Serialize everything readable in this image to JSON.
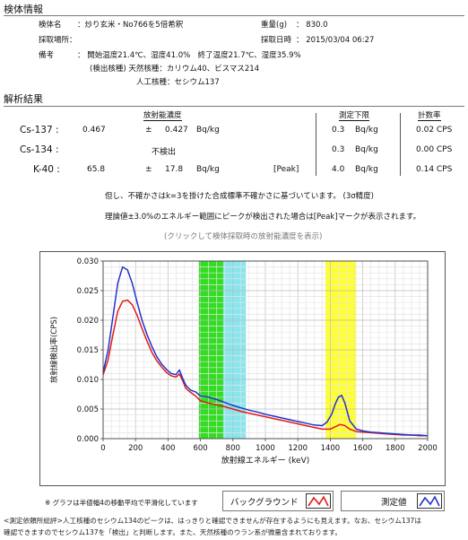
{
  "sample_info": {
    "heading": "検体情報",
    "name_label": "検体名",
    "name_value": "：炒り玄米・No766を5倍希釈",
    "weight_label": "重量(g)",
    "weight_value": "： 830.0",
    "place_label": "採取場所：",
    "datetime_label": "採取日時",
    "datetime_value": "： 2015/03/04 06:27",
    "remarks_label": "備考",
    "remarks_line1": "： 開始温度21.4℃、湿度41.0%　終了温度21.7℃、湿度35.9%",
    "remarks_line2": "(検出核種) 天然核種：カリウム40、ビスマス214",
    "remarks_line3": "人工核種：セシウム137"
  },
  "analysis": {
    "heading": "解析結果",
    "col_concentration": "放射能濃度",
    "col_lower_limit": "測定下限",
    "col_count_rate": "計数率",
    "rows": [
      {
        "nuclide": "Cs-137 :",
        "value": "0.467",
        "pm": "±",
        "error": "0.427",
        "unit": "Bq/kg",
        "flag": "",
        "lower_limit": "0.3",
        "lower_unit": "Bq/kg",
        "count_rate": "0.02 CPS"
      },
      {
        "nuclide": "Cs-134 :",
        "value": "不検出",
        "pm": "",
        "error": "",
        "unit": "",
        "flag": "",
        "lower_limit": "0.3",
        "lower_unit": "Bq/kg",
        "count_rate": "0.00 CPS"
      },
      {
        "nuclide": "K-40 :",
        "value": "65.8",
        "pm": "±",
        "error": "17.8",
        "unit": "Bq/kg",
        "flag": "[Peak]",
        "lower_limit": "4.0",
        "lower_unit": "Bq/kg",
        "count_rate": "0.14 CPS"
      }
    ],
    "note1": "但し、不確かさはk=3を掛けた合成標準不確かさに基づいています。 (3σ精度)",
    "note2": "理論値±3.0%のエネルギー範囲にピークが検出された場合は[Peak]マークが表示されます。",
    "link_text": "(クリックして検体採取時の放射能濃度を表示)"
  },
  "chart_data": {
    "type": "line",
    "xlabel": "放射線エネルギー (keV)",
    "ylabel": "放射線検出率(CPS)",
    "xlim": [
      0,
      2000
    ],
    "ylim": [
      0,
      0.03
    ],
    "x_ticks": [
      "0",
      "200",
      "400",
      "600",
      "800",
      "1000",
      "1200",
      "1400",
      "1600",
      "1800",
      "2000"
    ],
    "y_ticks": [
      "0.000",
      "0.005",
      "0.010",
      "0.015",
      "0.020",
      "0.025",
      "0.030"
    ],
    "grid": true,
    "bands": [
      {
        "from": 590,
        "to": 740,
        "color": "#33dd22"
      },
      {
        "from": 740,
        "to": 880,
        "color": "#88e6ec"
      },
      {
        "from": 1370,
        "to": 1560,
        "color": "#ffff33"
      }
    ],
    "series": [
      {
        "name": "バックグラウンド",
        "color": "#e21b1b",
        "x": [
          0,
          30,
          60,
          90,
          120,
          150,
          180,
          210,
          240,
          270,
          300,
          330,
          360,
          390,
          420,
          450,
          470,
          490,
          510,
          540,
          570,
          600,
          650,
          700,
          750,
          800,
          850,
          900,
          950,
          1000,
          1050,
          1100,
          1150,
          1200,
          1250,
          1300,
          1350,
          1400,
          1430,
          1460,
          1490,
          1520,
          1560,
          1600,
          1650,
          1700,
          1750,
          1800,
          1850,
          1900,
          1950,
          2000
        ],
        "values": [
          0.0108,
          0.0132,
          0.0175,
          0.0215,
          0.0232,
          0.0234,
          0.0226,
          0.0208,
          0.0186,
          0.0165,
          0.0146,
          0.0132,
          0.0121,
          0.0112,
          0.0106,
          0.0104,
          0.0109,
          0.0098,
          0.0085,
          0.0078,
          0.0072,
          0.0064,
          0.006,
          0.0057,
          0.0054,
          0.005,
          0.0046,
          0.0043,
          0.004,
          0.0037,
          0.0034,
          0.0031,
          0.0028,
          0.0025,
          0.0022,
          0.0019,
          0.0016,
          0.0016,
          0.002,
          0.0024,
          0.0022,
          0.0016,
          0.0012,
          0.0011,
          0.001,
          0.0009,
          0.0008,
          0.0007,
          0.0006,
          0.0006,
          0.0005,
          0.0005
        ]
      },
      {
        "name": "測定値",
        "color": "#2233cc",
        "x": [
          0,
          30,
          60,
          90,
          120,
          150,
          180,
          210,
          240,
          270,
          300,
          330,
          360,
          390,
          420,
          450,
          470,
          490,
          510,
          540,
          570,
          600,
          650,
          700,
          750,
          800,
          850,
          900,
          950,
          1000,
          1050,
          1100,
          1150,
          1200,
          1250,
          1300,
          1350,
          1380,
          1410,
          1430,
          1450,
          1470,
          1490,
          1520,
          1560,
          1600,
          1650,
          1700,
          1750,
          1800,
          1850,
          1900,
          1950,
          2000
        ],
        "values": [
          0.0112,
          0.0148,
          0.0205,
          0.0262,
          0.029,
          0.0285,
          0.0262,
          0.023,
          0.02,
          0.0176,
          0.0156,
          0.0139,
          0.0126,
          0.0117,
          0.011,
          0.0108,
          0.0116,
          0.0102,
          0.009,
          0.0082,
          0.0079,
          0.0072,
          0.007,
          0.0066,
          0.0061,
          0.0056,
          0.0052,
          0.0048,
          0.0045,
          0.0041,
          0.0038,
          0.0035,
          0.0032,
          0.0029,
          0.0026,
          0.0023,
          0.0022,
          0.0028,
          0.0042,
          0.0058,
          0.007,
          0.0073,
          0.006,
          0.003,
          0.0016,
          0.0013,
          0.0011,
          0.001,
          0.0009,
          0.0008,
          0.0007,
          0.0006,
          0.0006,
          0.0005
        ]
      }
    ]
  },
  "legend": {
    "smoothing_note": "※ グラフは半値幅4の移動平均で平滑化しています",
    "background_label": "バックグラウンド",
    "measured_label": "測定値"
  },
  "footer": {
    "line1": "<測定依頼所総評>人工核種のセシウム134のピークは、はっきりと確認できませんが存在するようにも見えます。なお、セシウム137は",
    "line2": "確認できますのでセシウム137を「検出」と判断します。また、天然核種のウラン系が微量含まれております。"
  }
}
